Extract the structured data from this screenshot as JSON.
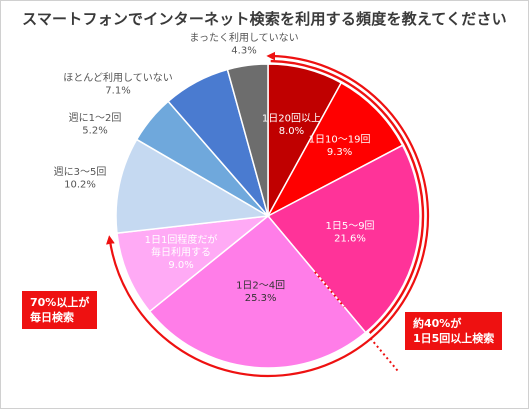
{
  "chart_data": {
    "type": "pie",
    "title": "スマートフォンでインターネット検索を利用する頻度を教えてください",
    "unit": "%",
    "slices": [
      {
        "label": "1日20回以上",
        "value": 8.0,
        "value_text": "8.0%",
        "color": "#c00000",
        "text_color": "#ffffff",
        "label_position": "inside"
      },
      {
        "label": "1日10～19回",
        "value": 9.3,
        "value_text": "9.3%",
        "color": "#ff0000",
        "text_color": "#ffffff",
        "label_position": "inside"
      },
      {
        "label": "1日5～9回",
        "value": 21.6,
        "value_text": "21.6%",
        "color": "#ff3399",
        "text_color": "#ffffff",
        "label_position": "inside"
      },
      {
        "label": "1日2～4回",
        "value": 25.3,
        "value_text": "25.3%",
        "color": "#ff7de8",
        "text_color": "#333333",
        "label_position": "inside"
      },
      {
        "label": "1日1回程度だが毎日利用する",
        "label_lines": [
          "1日1回程度だが",
          "毎日利用する"
        ],
        "value": 9.0,
        "value_text": "9.0%",
        "color": "#ffaaf5",
        "text_color": "#ffffff",
        "label_position": "inside"
      },
      {
        "label": "週に3～5回",
        "value": 10.2,
        "value_text": "10.2%",
        "color": "#c5d9f1",
        "text_color": "#555555",
        "label_position": "outside"
      },
      {
        "label": "週に1～2回",
        "value": 5.2,
        "value_text": "5.2%",
        "color": "#6fa8dc",
        "text_color": "#555555",
        "label_position": "outside"
      },
      {
        "label": "ほとんど利用していない",
        "value": 7.1,
        "value_text": "7.1%",
        "color": "#4a7bd0",
        "text_color": "#555555",
        "label_position": "outside"
      },
      {
        "label": "まったく利用していない",
        "value": 4.3,
        "value_text": "4.3%",
        "color": "#6d6d6d",
        "text_color": "#555555",
        "label_position": "outside"
      }
    ],
    "annotations": [
      {
        "id": "daily",
        "lines": [
          "70%以上が",
          "毎日検索"
        ]
      },
      {
        "id": "five-plus",
        "lines": [
          "約40%が",
          "1日5回以上検索"
        ]
      }
    ],
    "legend": "none"
  }
}
